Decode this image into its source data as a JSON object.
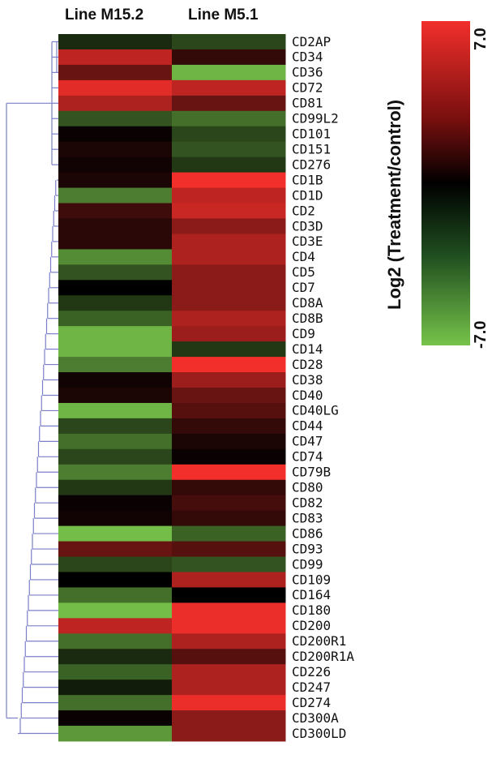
{
  "chart_data": {
    "type": "heatmap",
    "title": "",
    "columns": [
      "Line M15.2",
      "Line M5.1"
    ],
    "rows": [
      "CD2AP",
      "CD34",
      "CD36",
      "CD72",
      "CD81",
      "CD99L2",
      "CD101",
      "CD151",
      "CD276",
      "CD1B",
      "CD1D",
      "CD2",
      "CD3D",
      "CD3E",
      "CD4",
      "CD5",
      "CD7",
      "CD8A",
      "CD8B",
      "CD9",
      "CD14",
      "CD28",
      "CD38",
      "CD40",
      "CD40LG",
      "CD44",
      "CD47",
      "CD74",
      "CD79B",
      "CD80",
      "CD82",
      "CD83",
      "CD86",
      "CD93",
      "CD99",
      "CD109",
      "CD164",
      "CD180",
      "CD200",
      "CD200R1",
      "CD200R1A",
      "CD226",
      "CD247",
      "CD274",
      "CD300A",
      "CD300LD"
    ],
    "values": [
      [
        -1.5,
        -2.5
      ],
      [
        5.5,
        1.5
      ],
      [
        3.0,
        -6.5
      ],
      [
        6.5,
        5.5
      ],
      [
        5.0,
        3.0
      ],
      [
        -3.0,
        -4.0
      ],
      [
        0.3,
        -2.5
      ],
      [
        0.8,
        -3.0
      ],
      [
        0.5,
        -2.0
      ],
      [
        0.8,
        7.0
      ],
      [
        -4.5,
        5.5
      ],
      [
        1.8,
        5.8
      ],
      [
        1.2,
        4.0
      ],
      [
        1.2,
        5.0
      ],
      [
        -5.0,
        5.0
      ],
      [
        -3.0,
        4.0
      ],
      [
        0.0,
        4.0
      ],
      [
        -2.0,
        4.0
      ],
      [
        -3.5,
        5.0
      ],
      [
        -6.5,
        4.5
      ],
      [
        -6.5,
        -2.0
      ],
      [
        -4.5,
        7.0
      ],
      [
        0.5,
        4.5
      ],
      [
        0.8,
        3.0
      ],
      [
        -6.5,
        2.5
      ],
      [
        -2.5,
        1.5
      ],
      [
        -4.0,
        0.8
      ],
      [
        -2.5,
        0.3
      ],
      [
        -4.5,
        7.0
      ],
      [
        -2.0,
        1.5
      ],
      [
        0.3,
        2.0
      ],
      [
        0.5,
        1.5
      ],
      [
        -6.8,
        -3.5
      ],
      [
        3.0,
        2.5
      ],
      [
        -2.5,
        -3.0
      ],
      [
        0.0,
        5.0
      ],
      [
        -4.0,
        0.0
      ],
      [
        -6.8,
        6.8
      ],
      [
        5.5,
        6.8
      ],
      [
        -4.0,
        5.0
      ],
      [
        -1.5,
        2.5
      ],
      [
        -3.5,
        5.0
      ],
      [
        -1.0,
        5.0
      ],
      [
        -4.0,
        6.8
      ],
      [
        0.3,
        4.0
      ],
      [
        -5.5,
        4.0
      ]
    ],
    "scale_range": [
      -7.0,
      7.0
    ],
    "scale_max_label": "7.0",
    "scale_min_label": "-7.0",
    "colorbar_label": "Log2 (Treatment/control)",
    "colors": {
      "high": "#f22f2b",
      "mid": "#000000",
      "low": "#76c34a"
    },
    "dendrogram_color": "#7b7fc8"
  }
}
